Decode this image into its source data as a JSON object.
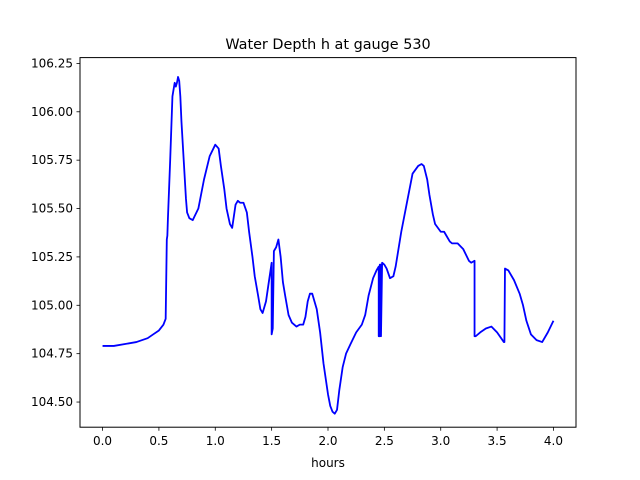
{
  "chart_data": {
    "type": "line",
    "title": "Water Depth h at gauge 530",
    "xlabel": "hours",
    "ylabel": "",
    "xlim": [
      -0.2,
      4.2
    ],
    "ylim": [
      104.37,
      106.28
    ],
    "xticks": [
      0.0,
      0.5,
      1.0,
      1.5,
      2.0,
      2.5,
      3.0,
      3.5,
      4.0
    ],
    "xtick_labels": [
      "0.0",
      "0.5",
      "1.0",
      "1.5",
      "2.0",
      "2.5",
      "3.0",
      "3.5",
      "4.0"
    ],
    "yticks": [
      104.5,
      104.75,
      105.0,
      105.25,
      105.5,
      105.75,
      106.0,
      106.25
    ],
    "ytick_labels": [
      "104.50",
      "104.75",
      "105.00",
      "105.25",
      "105.50",
      "105.75",
      "106.00",
      "106.25"
    ],
    "grid": false,
    "series": [
      {
        "color": "#0000ff",
        "x": [
          0.0,
          0.1,
          0.2,
          0.3,
          0.4,
          0.45,
          0.5,
          0.54,
          0.56,
          0.57,
          0.575,
          0.58,
          0.6,
          0.62,
          0.64,
          0.65,
          0.66,
          0.67,
          0.68,
          0.69,
          0.7,
          0.72,
          0.74,
          0.75,
          0.77,
          0.8,
          0.85,
          0.9,
          0.95,
          1.0,
          1.03,
          1.05,
          1.08,
          1.1,
          1.13,
          1.15,
          1.18,
          1.2,
          1.22,
          1.25,
          1.28,
          1.3,
          1.33,
          1.35,
          1.38,
          1.4,
          1.42,
          1.45,
          1.47,
          1.49,
          1.5,
          1.5,
          1.51,
          1.52,
          1.54,
          1.55,
          1.56,
          1.58,
          1.6,
          1.62,
          1.65,
          1.68,
          1.72,
          1.75,
          1.78,
          1.8,
          1.82,
          1.84,
          1.86,
          1.88,
          1.9,
          1.93,
          1.96,
          2.0,
          2.02,
          2.04,
          2.06,
          2.08,
          2.1,
          2.13,
          2.16,
          2.2,
          2.25,
          2.3,
          2.33,
          2.36,
          2.4,
          2.43,
          2.45,
          2.45,
          2.46,
          2.46,
          2.47,
          2.47,
          2.48,
          2.5,
          2.52,
          2.55,
          2.58,
          2.6,
          2.65,
          2.7,
          2.75,
          2.8,
          2.83,
          2.85,
          2.88,
          2.9,
          2.93,
          2.95,
          3.0,
          3.03,
          3.05,
          3.08,
          3.1,
          3.15,
          3.2,
          3.25,
          3.27,
          3.3,
          3.3,
          3.31,
          3.35,
          3.4,
          3.45,
          3.5,
          3.56,
          3.565,
          3.57,
          3.6,
          3.65,
          3.7,
          3.73,
          3.76,
          3.8,
          3.85,
          3.9,
          3.95,
          4.0
        ],
        "y": [
          104.79,
          104.79,
          104.8,
          104.81,
          104.83,
          104.85,
          104.87,
          104.9,
          104.93,
          105.34,
          105.36,
          105.45,
          105.75,
          106.08,
          106.15,
          106.13,
          106.15,
          106.18,
          106.16,
          106.08,
          105.95,
          105.75,
          105.55,
          105.48,
          105.45,
          105.44,
          105.5,
          105.65,
          105.77,
          105.83,
          105.81,
          105.72,
          105.6,
          105.5,
          105.42,
          105.4,
          105.52,
          105.54,
          105.53,
          105.53,
          105.48,
          105.38,
          105.25,
          105.15,
          105.05,
          104.98,
          104.96,
          105.02,
          105.1,
          105.18,
          105.22,
          104.85,
          104.88,
          105.28,
          105.3,
          105.32,
          105.34,
          105.25,
          105.12,
          105.05,
          104.95,
          104.91,
          104.89,
          104.9,
          104.9,
          104.94,
          105.02,
          105.06,
          105.06,
          105.02,
          104.98,
          104.86,
          104.7,
          104.54,
          104.48,
          104.45,
          104.44,
          104.46,
          104.56,
          104.68,
          104.75,
          104.8,
          104.86,
          104.9,
          104.95,
          105.05,
          105.14,
          105.18,
          105.2,
          104.84,
          104.84,
          105.21,
          105.21,
          104.84,
          105.22,
          105.21,
          105.19,
          105.14,
          105.15,
          105.2,
          105.38,
          105.53,
          105.68,
          105.72,
          105.73,
          105.72,
          105.65,
          105.57,
          105.47,
          105.42,
          105.38,
          105.38,
          105.36,
          105.33,
          105.32,
          105.32,
          105.29,
          105.23,
          105.22,
          105.23,
          104.84,
          104.84,
          104.86,
          104.88,
          104.89,
          104.86,
          104.81,
          104.81,
          105.19,
          105.18,
          105.13,
          105.06,
          105.0,
          104.92,
          104.85,
          104.82,
          104.81,
          104.86,
          104.92
        ]
      }
    ]
  }
}
